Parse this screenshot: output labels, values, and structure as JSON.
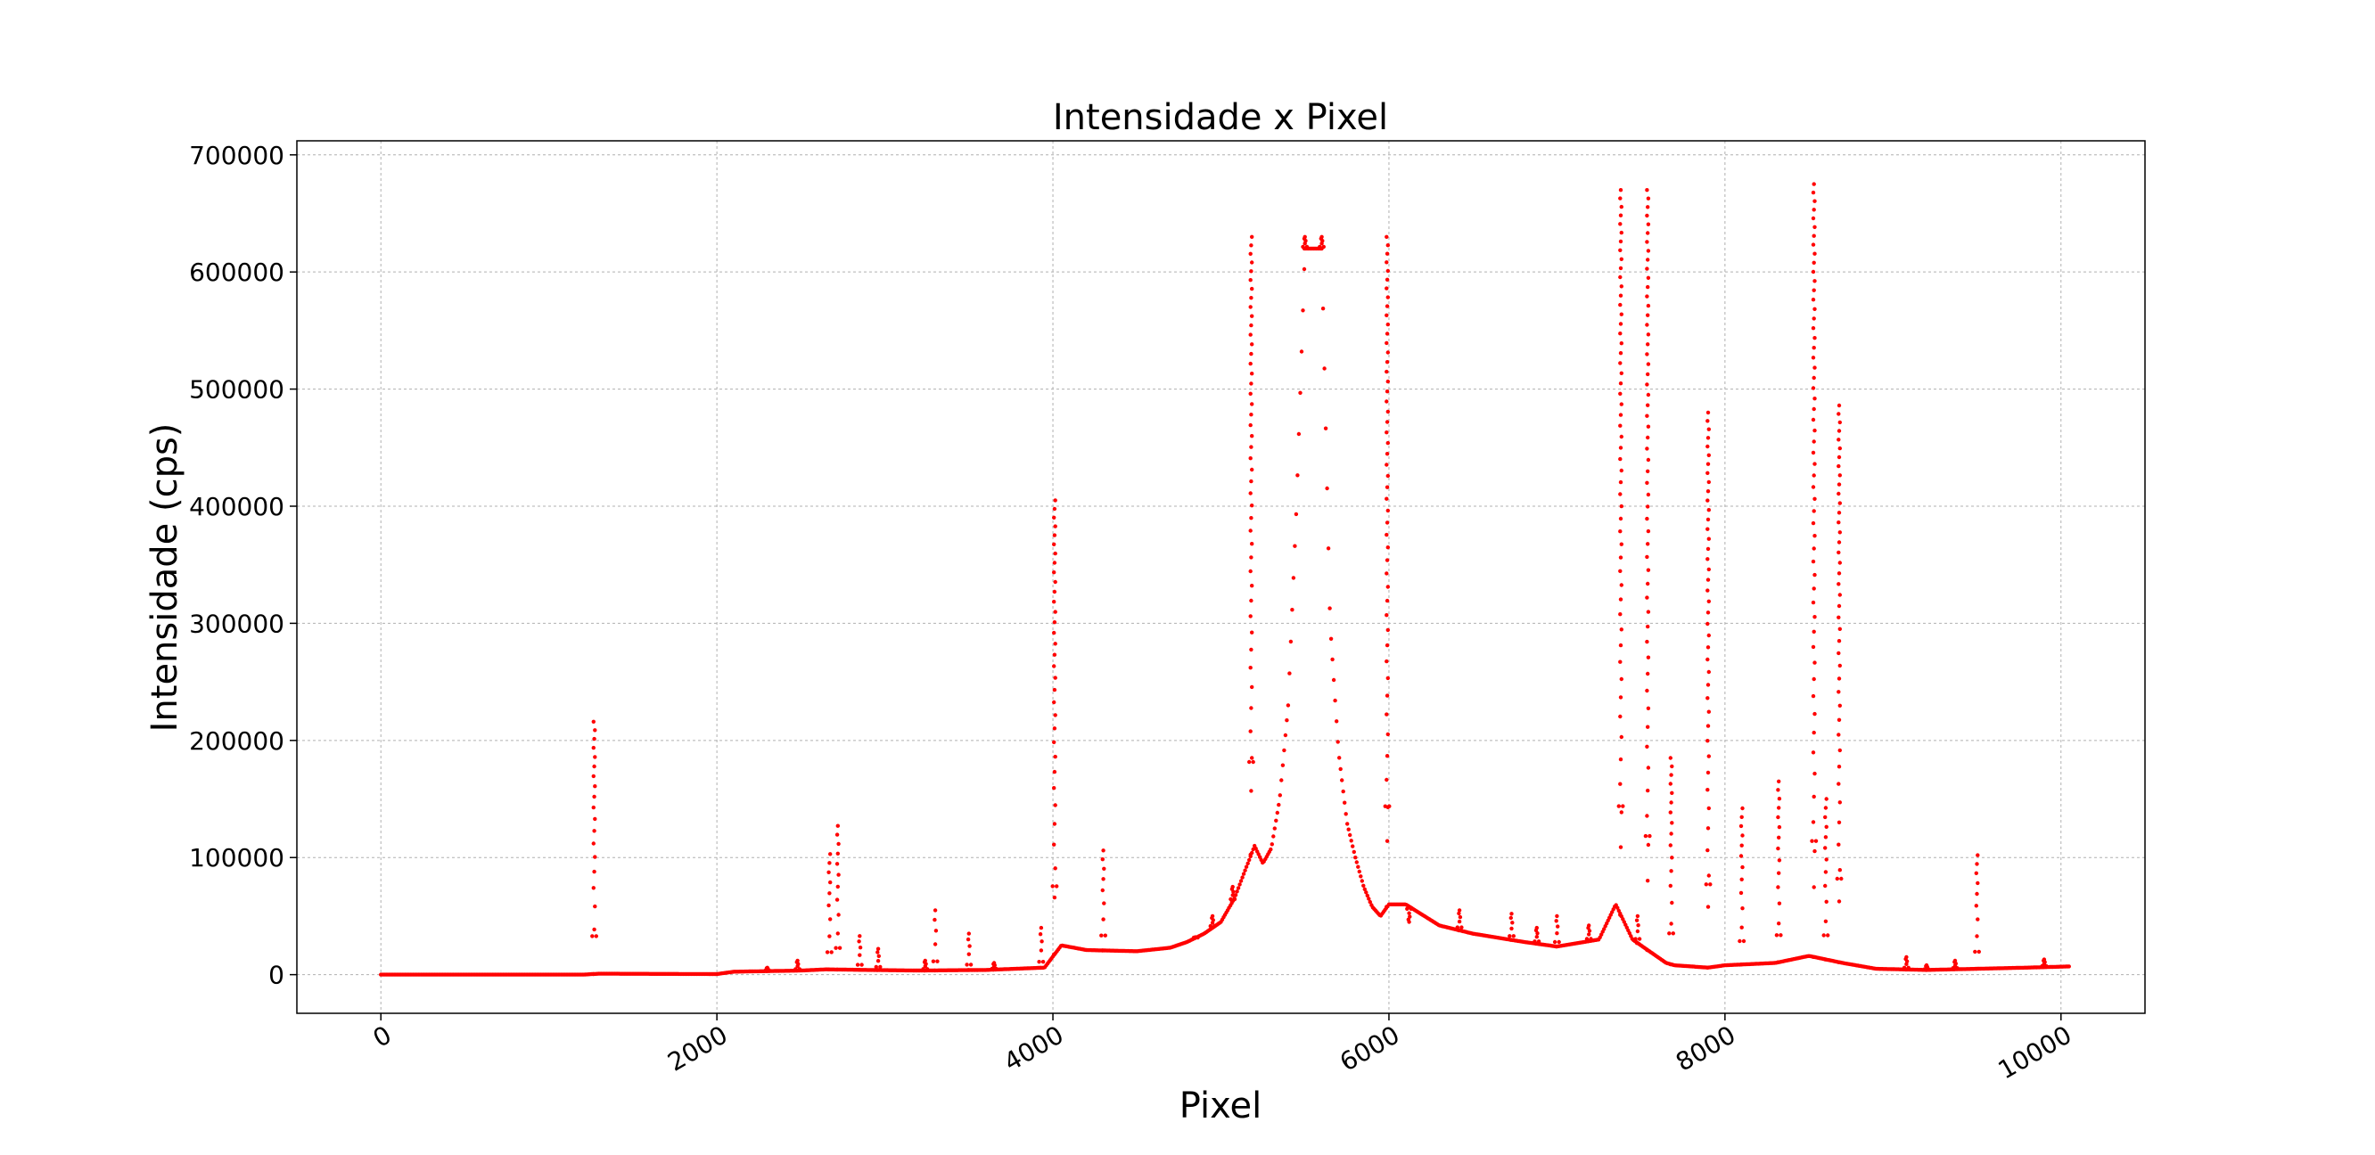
{
  "chart_data": {
    "type": "scatter",
    "title": "Intensidade x Pixel",
    "xlabel": "Pixel",
    "ylabel": "Intensidade (cps)",
    "xlim": [
      -500,
      10500
    ],
    "ylim": [
      -33000,
      712000
    ],
    "xticks": [
      0,
      2000,
      4000,
      6000,
      8000,
      10000
    ],
    "yticks": [
      0,
      100000,
      200000,
      300000,
      400000,
      500000,
      600000,
      700000
    ],
    "xtick_labels": [
      "0",
      "2000",
      "4000",
      "6000",
      "8000",
      "10000"
    ],
    "ytick_labels": [
      "0",
      "100000",
      "200000",
      "300000",
      "400000",
      "500000",
      "600000",
      "700000"
    ],
    "grid": true,
    "series": [
      {
        "color": "#ff0000",
        "marker": "point",
        "baseline": [
          [
            0,
            0
          ],
          [
            1200,
            0
          ],
          [
            1300,
            800
          ],
          [
            2000,
            500
          ],
          [
            2100,
            2500
          ],
          [
            2500,
            3500
          ],
          [
            2650,
            4500
          ],
          [
            2900,
            4000
          ],
          [
            3200,
            3500
          ],
          [
            3600,
            4000
          ],
          [
            3950,
            6000
          ],
          [
            4050,
            25000
          ],
          [
            4200,
            21000
          ],
          [
            4500,
            20000
          ],
          [
            4700,
            23000
          ],
          [
            4800,
            28000
          ],
          [
            4900,
            35000
          ],
          [
            5000,
            45000
          ],
          [
            5080,
            65000
          ],
          [
            5120,
            80000
          ],
          [
            5160,
            95000
          ],
          [
            5200,
            110000
          ],
          [
            5250,
            95000
          ],
          [
            5300,
            108000
          ],
          [
            5350,
            150000
          ],
          [
            5400,
            230000
          ],
          [
            5450,
            400000
          ],
          [
            5500,
            620000
          ],
          [
            5600,
            620000
          ],
          [
            5650,
            300000
          ],
          [
            5700,
            190000
          ],
          [
            5750,
            130000
          ],
          [
            5800,
            100000
          ],
          [
            5850,
            75000
          ],
          [
            5900,
            58000
          ],
          [
            5950,
            50000
          ],
          [
            6000,
            60000
          ],
          [
            6100,
            60000
          ],
          [
            6300,
            42000
          ],
          [
            6500,
            35000
          ],
          [
            6800,
            28000
          ],
          [
            7000,
            24000
          ],
          [
            7250,
            30000
          ],
          [
            7350,
            60000
          ],
          [
            7450,
            30000
          ],
          [
            7650,
            10000
          ],
          [
            7700,
            8000
          ],
          [
            7900,
            6000
          ],
          [
            8000,
            8000
          ],
          [
            8300,
            10000
          ],
          [
            8500,
            16000
          ],
          [
            8700,
            10000
          ],
          [
            8900,
            5000
          ],
          [
            9200,
            4000
          ],
          [
            9500,
            5000
          ],
          [
            9800,
            6000
          ],
          [
            10050,
            7000
          ]
        ],
        "peaks": [
          [
            1270,
            216000
          ],
          [
            2300,
            6000
          ],
          [
            2480,
            12000
          ],
          [
            2670,
            103000
          ],
          [
            2720,
            127000
          ],
          [
            2850,
            33000
          ],
          [
            2960,
            22000
          ],
          [
            3240,
            12000
          ],
          [
            3300,
            55000
          ],
          [
            3500,
            35000
          ],
          [
            3650,
            10000
          ],
          [
            3930,
            40000
          ],
          [
            4010,
            405000
          ],
          [
            4300,
            106000
          ],
          [
            4850,
            32000
          ],
          [
            4950,
            50000
          ],
          [
            5070,
            75000
          ],
          [
            5180,
            630000
          ],
          [
            5500,
            630000
          ],
          [
            5600,
            630000
          ],
          [
            5990,
            630000
          ],
          [
            6120,
            45000
          ],
          [
            6420,
            55000
          ],
          [
            6730,
            52000
          ],
          [
            6880,
            40000
          ],
          [
            7000,
            50000
          ],
          [
            7190,
            42000
          ],
          [
            7380,
            670000
          ],
          [
            7480,
            50000
          ],
          [
            7540,
            670000
          ],
          [
            7680,
            185000
          ],
          [
            7900,
            480000
          ],
          [
            8100,
            142000
          ],
          [
            8320,
            165000
          ],
          [
            8530,
            675000
          ],
          [
            8600,
            150000
          ],
          [
            8680,
            486000
          ],
          [
            9080,
            15000
          ],
          [
            9200,
            8000
          ],
          [
            9370,
            12000
          ],
          [
            9500,
            102000
          ],
          [
            9900,
            13000
          ]
        ]
      }
    ]
  }
}
